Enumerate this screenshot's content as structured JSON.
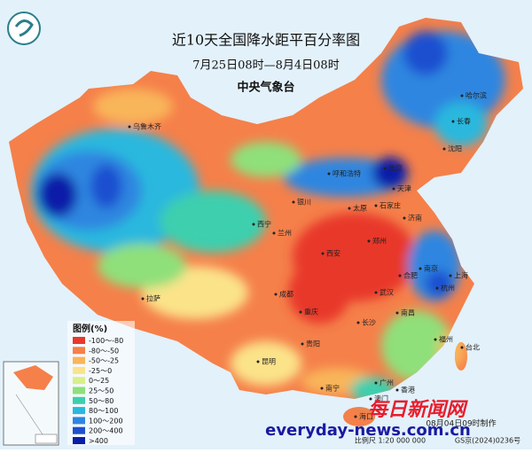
{
  "header": {
    "title": "近10天全国降水距平百分率图",
    "period": "7月25日08时—8月4日08时",
    "agency": "中央气象台"
  },
  "legend": {
    "title": "图例(%)",
    "items": [
      {
        "label": "-100～-80",
        "color": "#e8382a"
      },
      {
        "label": "-80～-50",
        "color": "#f5804a"
      },
      {
        "label": "-50～-25",
        "color": "#f9b55a"
      },
      {
        "label": "-25～0",
        "color": "#fbe38a"
      },
      {
        "label": "0～25",
        "color": "#d8ef8a"
      },
      {
        "label": "25～50",
        "color": "#8fe07a"
      },
      {
        "label": "50～80",
        "color": "#3ccfae"
      },
      {
        "label": "80～100",
        "color": "#2bb8de"
      },
      {
        "label": "100～200",
        "color": "#2f86e0"
      },
      {
        "label": "200～400",
        "color": "#1f4fd0"
      },
      {
        "label": ">400",
        "color": "#0a1ea8"
      }
    ]
  },
  "cities": [
    "乌鲁木齐",
    "哈尔滨",
    "长春",
    "沈阳",
    "呼和浩特",
    "北京",
    "天津",
    "银川",
    "太原",
    "石家庄",
    "西宁",
    "兰州",
    "济南",
    "郑州",
    "西安",
    "南京",
    "合肥",
    "上海",
    "杭州",
    "成都",
    "武汉",
    "重庆",
    "拉萨",
    "长沙",
    "南昌",
    "福州",
    "贵阳",
    "台北",
    "昆明",
    "南宁",
    "广州",
    "香港",
    "澳门",
    "海口"
  ],
  "watermark": {
    "name": "每日新闻网",
    "url": "everyday-news.com.cn"
  },
  "footer": {
    "made": "08月04日09时制作",
    "scale": "比例尺 1:20 000 000",
    "approval": "GS京(2024)0236号"
  }
}
